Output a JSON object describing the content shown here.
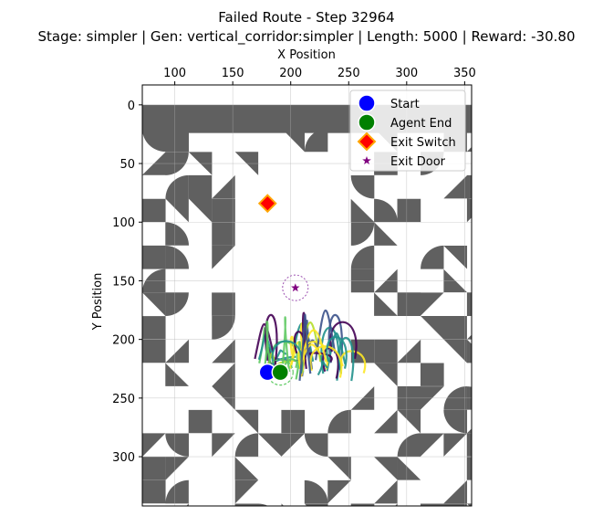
{
  "chart_data": {
    "type": "scatter",
    "title": "Failed Route - Step 32964",
    "subtitle": "Stage: simpler | Gen: vertical_corridor:simpler | Length: 5000 | Reward: -30.80",
    "xlabel": "X Position",
    "ylabel": "Y Position",
    "xlim": [
      72,
      356
    ],
    "ylim": [
      342,
      -17
    ],
    "y_inverted": true,
    "x_axis_position": "top",
    "xticks": [
      100,
      150,
      200,
      250,
      300,
      350
    ],
    "yticks": [
      0,
      50,
      100,
      150,
      200,
      250,
      300
    ],
    "grid": true,
    "legend_placement": "top-right",
    "legend": [
      {
        "label": "Start",
        "marker": "circle",
        "color": "#0000ff"
      },
      {
        "label": "Agent End",
        "marker": "circle",
        "color": "#008000"
      },
      {
        "label": "Exit Switch",
        "marker": "diamond",
        "color": "#ff0000",
        "edge": "#ffa500"
      },
      {
        "label": "Exit Door",
        "marker": "star",
        "color": "#800080"
      }
    ],
    "points": {
      "start": [
        180,
        228
      ],
      "agent_end": [
        191,
        228
      ],
      "exit_switch": [
        180,
        84
      ],
      "exit_door": [
        204,
        156
      ]
    },
    "wall_color": "#606060",
    "trajectory_colors": [
      "#440154",
      "#3b528b",
      "#21918c",
      "#5ec962",
      "#b5de2b",
      "#fde725"
    ]
  }
}
